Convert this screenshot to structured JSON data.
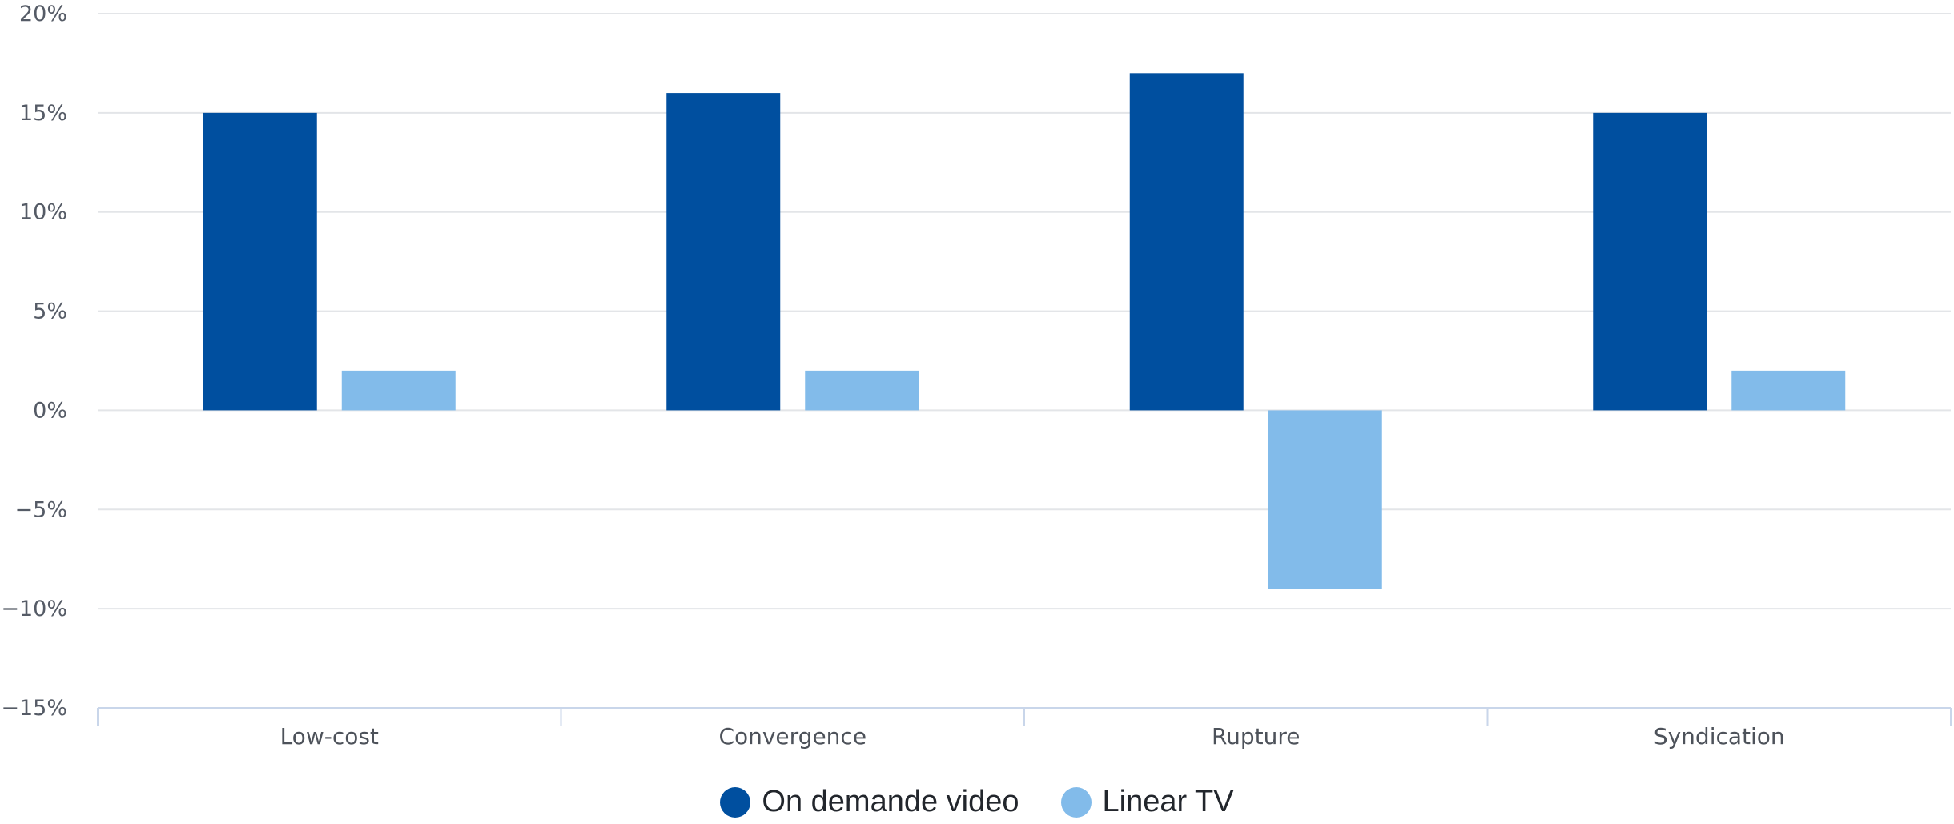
{
  "chart_data": {
    "type": "bar",
    "categories": [
      "Low-cost",
      "Convergence",
      "Rupture",
      "Syndication"
    ],
    "series": [
      {
        "name": "On demande video",
        "color": "#004f9f",
        "values": [
          15,
          16,
          17,
          15
        ]
      },
      {
        "name": "Linear TV",
        "color": "#82bbea",
        "values": [
          2,
          2,
          -9,
          2
        ]
      }
    ],
    "y_ticks": [
      {
        "value": 20,
        "label": "20%"
      },
      {
        "value": 15,
        "label": "15%"
      },
      {
        "value": 10,
        "label": "10%"
      },
      {
        "value": 5,
        "label": "5%"
      },
      {
        "value": 0,
        "label": "0%"
      },
      {
        "value": -5,
        "label": "−5%"
      },
      {
        "value": -10,
        "label": "−10%"
      },
      {
        "value": -15,
        "label": "−15%"
      }
    ],
    "ylim": [
      -15,
      20
    ],
    "grid": true,
    "legend_position": "bottom-center",
    "title": "",
    "xlabel": "",
    "ylabel": ""
  },
  "colors": {
    "grid": "#e3e5e8",
    "axis": "#c9d6ea",
    "tick_text": "#555b66"
  }
}
